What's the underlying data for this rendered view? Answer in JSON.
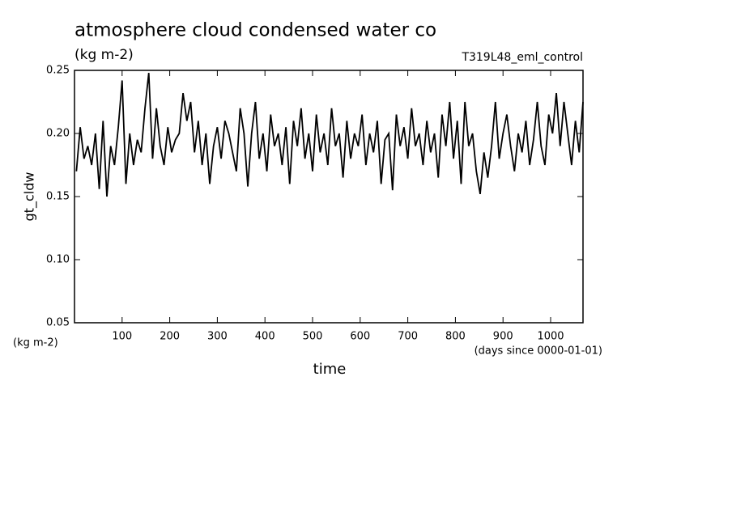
{
  "chart_data": {
    "type": "line",
    "title": "atmosphere cloud condensed water co",
    "subtitle": "(kg m-2)",
    "annotation": "T319L48_eml_control",
    "ylabel": "gt_cldw",
    "y_units": "(kg m-2)",
    "xlabel": "time",
    "x_units": "(days since 0000-01-01)",
    "xlim": [
      0,
      1068
    ],
    "ylim": [
      0.05,
      0.25
    ],
    "xticks": [
      100,
      200,
      300,
      400,
      500,
      600,
      700,
      800,
      900,
      1000
    ],
    "yticks": [
      0.05,
      {
        "value": 0.1,
        "label": "0.10"
      },
      0.15,
      {
        "value": 0.2,
        "label": "0.20"
      },
      0.25
    ],
    "x": [
      4,
      12,
      20,
      28,
      36,
      44,
      52,
      60,
      68,
      76,
      84,
      92,
      100,
      108,
      116,
      124,
      132,
      140,
      148,
      156,
      164,
      172,
      180,
      188,
      196,
      204,
      212,
      220,
      228,
      236,
      244,
      252,
      260,
      268,
      276,
      284,
      292,
      300,
      308,
      316,
      324,
      332,
      340,
      348,
      356,
      364,
      372,
      380,
      388,
      396,
      404,
      412,
      420,
      428,
      436,
      444,
      452,
      460,
      468,
      476,
      484,
      492,
      500,
      508,
      516,
      524,
      532,
      540,
      548,
      556,
      564,
      572,
      580,
      588,
      596,
      604,
      612,
      620,
      628,
      636,
      644,
      652,
      660,
      668,
      676,
      684,
      692,
      700,
      708,
      716,
      724,
      732,
      740,
      748,
      756,
      764,
      772,
      780,
      788,
      796,
      804,
      812,
      820,
      828,
      836,
      844,
      852,
      860,
      868,
      876,
      884,
      892,
      900,
      908,
      916,
      924,
      932,
      940,
      948,
      956,
      964,
      972,
      980,
      988,
      996,
      1004,
      1012,
      1020,
      1028,
      1036,
      1044,
      1052,
      1060,
      1068
    ],
    "series": [
      {
        "color": "#000000",
        "values": [
          0.17,
          0.205,
          0.18,
          0.19,
          0.175,
          0.2,
          0.156,
          0.21,
          0.15,
          0.19,
          0.175,
          0.205,
          0.242,
          0.16,
          0.2,
          0.175,
          0.195,
          0.185,
          0.22,
          0.248,
          0.18,
          0.22,
          0.19,
          0.175,
          0.205,
          0.185,
          0.195,
          0.2,
          0.232,
          0.21,
          0.225,
          0.185,
          0.21,
          0.175,
          0.2,
          0.16,
          0.19,
          0.205,
          0.18,
          0.21,
          0.2,
          0.185,
          0.17,
          0.22,
          0.2,
          0.158,
          0.2,
          0.225,
          0.18,
          0.2,
          0.17,
          0.215,
          0.19,
          0.2,
          0.175,
          0.205,
          0.16,
          0.21,
          0.19,
          0.22,
          0.18,
          0.2,
          0.17,
          0.215,
          0.185,
          0.2,
          0.175,
          0.22,
          0.19,
          0.2,
          0.165,
          0.21,
          0.18,
          0.2,
          0.19,
          0.215,
          0.175,
          0.2,
          0.185,
          0.21,
          0.16,
          0.195,
          0.2,
          0.155,
          0.215,
          0.19,
          0.205,
          0.18,
          0.22,
          0.19,
          0.2,
          0.175,
          0.21,
          0.185,
          0.2,
          0.165,
          0.215,
          0.19,
          0.225,
          0.18,
          0.21,
          0.16,
          0.225,
          0.19,
          0.2,
          0.17,
          0.152,
          0.185,
          0.165,
          0.19,
          0.225,
          0.18,
          0.2,
          0.215,
          0.19,
          0.17,
          0.2,
          0.185,
          0.21,
          0.175,
          0.195,
          0.225,
          0.19,
          0.175,
          0.215,
          0.2,
          0.232,
          0.19,
          0.225,
          0.2,
          0.175,
          0.21,
          0.185,
          0.225
        ]
      }
    ]
  }
}
